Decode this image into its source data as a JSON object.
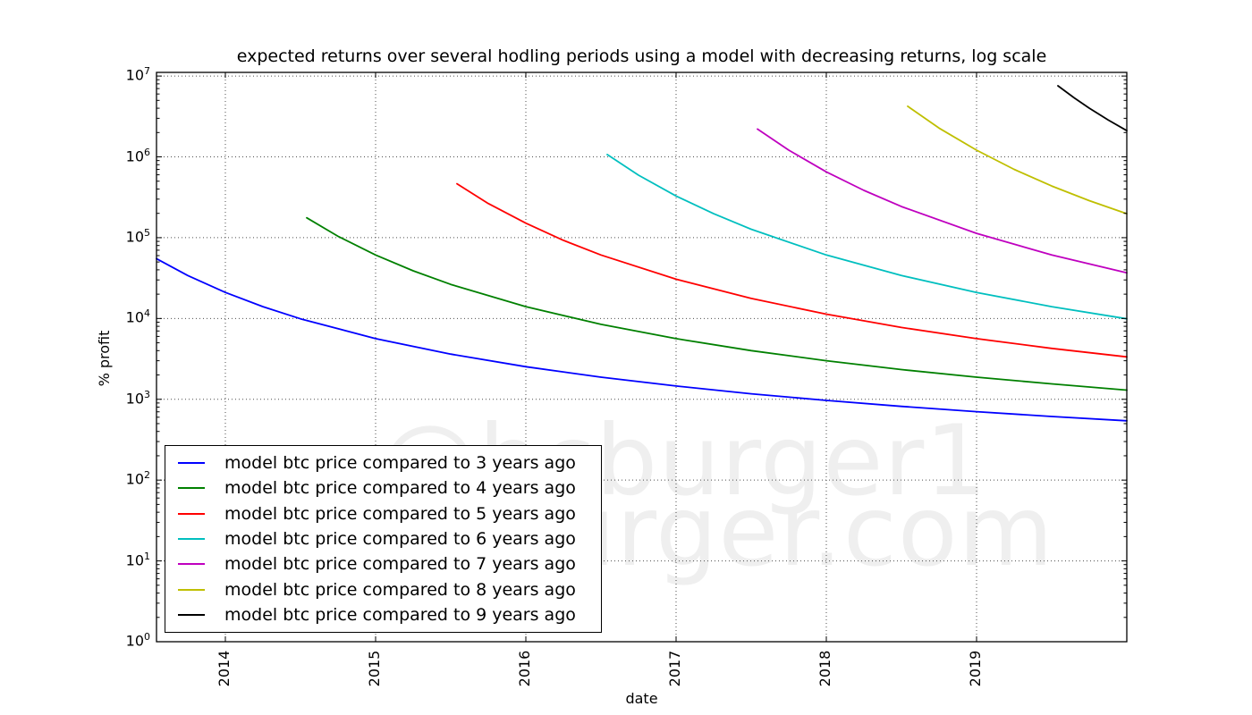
{
  "watermark": {
    "line1": "@hcburger1",
    "line2": "hcburger.com",
    "color": "#efefef"
  },
  "chart_data": {
    "type": "line",
    "title": "expected returns over several hodling periods using a model with decreasing returns, log scale",
    "xlabel": "date",
    "ylabel": "% profit",
    "x_scale": "linear_years",
    "y_scale": "log10",
    "xlim": [
      2013.5417,
      2020.0
    ],
    "ylim": [
      1,
      11100000
    ],
    "x_ticks": [
      2014,
      2015,
      2016,
      2017,
      2018,
      2019
    ],
    "y_tick_exponents": [
      0,
      1,
      2,
      3,
      4,
      5,
      6,
      7
    ],
    "y_tick_labels": [
      "10^0",
      "10^1",
      "10^2",
      "10^3",
      "10^4",
      "10^5",
      "10^6",
      "10^7"
    ],
    "grid": "dotted both axes at major ticks",
    "legend_position": "lower left",
    "frame_color": "#000000",
    "grid_color": "#4d4d4d",
    "series": [
      {
        "name": "model btc price compared to 3 years ago",
        "color": "#0000ff",
        "x": [
          2013.5417,
          2013.75,
          2014.0,
          2014.25,
          2014.5,
          2015.0,
          2015.5,
          2016.0,
          2016.5,
          2017.0,
          2017.5,
          2018.0,
          2018.5,
          2019.0,
          2019.5,
          2020.0
        ],
        "y": [
          55000,
          34000,
          21000,
          14000,
          9900,
          5630,
          3620,
          2530,
          1880,
          1460,
          1170,
          968,
          817,
          703,
          613,
          542
        ]
      },
      {
        "name": "model btc price compared to 4 years ago",
        "color": "#008000",
        "x": [
          2014.5417,
          2014.75,
          2015.0,
          2015.25,
          2015.5,
          2016.0,
          2016.5,
          2017.0,
          2017.5,
          2018.0,
          2018.5,
          2019.0,
          2019.5,
          2020.0
        ],
        "y": [
          176000,
          104000,
          61100,
          38900,
          26400,
          14000,
          8470,
          5630,
          4000,
          3000,
          2330,
          1880,
          1550,
          1300
        ]
      },
      {
        "name": "model btc price compared to 5 years ago",
        "color": "#ff0000",
        "x": [
          2015.5417,
          2015.75,
          2016.0,
          2016.25,
          2016.5,
          2017.0,
          2017.5,
          2018.0,
          2018.5,
          2019.0,
          2019.5,
          2020.0
        ],
        "y": [
          465000,
          265000,
          151000,
          92700,
          61100,
          30600,
          17700,
          11300,
          7750,
          5630,
          4270,
          3350
        ]
      },
      {
        "name": "model btc price compared to 6 years ago",
        "color": "#00bfbf",
        "x": [
          2016.5417,
          2016.75,
          2017.0,
          2017.25,
          2017.5,
          2018.0,
          2018.5,
          2019.0,
          2019.5,
          2020.0
        ],
        "y": [
          1070000,
          594000,
          328000,
          198000,
          127000,
          61100,
          34000,
          21000,
          14000,
          9900
        ]
      },
      {
        "name": "model btc price compared to 7 years ago",
        "color": "#bf00bf",
        "x": [
          2017.5417,
          2017.75,
          2018.0,
          2018.25,
          2018.5,
          2019.0,
          2019.5,
          2020.0
        ],
        "y": [
          2210000,
          1210000,
          652000,
          385000,
          243000,
          113000,
          61100,
          36700
        ]
      },
      {
        "name": "model btc price compared to 8 years ago",
        "color": "#bfbf00",
        "x": [
          2018.5417,
          2018.75,
          2019.0,
          2019.25,
          2019.5,
          2019.75,
          2020.0
        ],
        "y": [
          4230000,
          2270000,
          1210000,
          701000,
          436000,
          287000,
          198000
        ]
      },
      {
        "name": "model btc price compared to 9 years ago",
        "color": "#000000",
        "x": [
          2019.5417,
          2019.65,
          2019.75,
          2019.875,
          2020.0
        ],
        "y": [
          7570000,
          5370000,
          4010000,
          2870000,
          2110000
        ]
      }
    ]
  }
}
